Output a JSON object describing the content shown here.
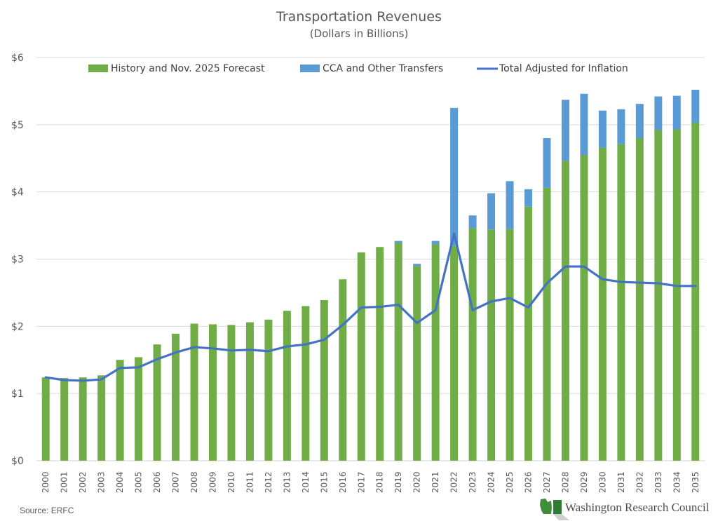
{
  "chart_data": {
    "type": "bar",
    "stacked": true,
    "title": "Transportation Revenues",
    "subtitle": "(Dollars in Billions)",
    "xlabel": "",
    "ylabel": "",
    "ylim": [
      0,
      6
    ],
    "yticks": [
      0,
      1,
      2,
      3,
      4,
      5,
      6
    ],
    "ytick_labels": [
      "$0",
      "$1",
      "$2",
      "$3",
      "$4",
      "$5",
      "$6"
    ],
    "grid": true,
    "legend_position": "top",
    "categories": [
      "2000",
      "2001",
      "2002",
      "2003",
      "2004",
      "2005",
      "2006",
      "2007",
      "2008",
      "2009",
      "2010",
      "2011",
      "2012",
      "2013",
      "2014",
      "2015",
      "2016",
      "2017",
      "2018",
      "2019",
      "2020",
      "2021",
      "2022",
      "2023",
      "2024",
      "2025",
      "2026",
      "2027",
      "2028",
      "2029",
      "2030",
      "2031",
      "2032",
      "2033",
      "2034",
      "2035"
    ],
    "series": [
      {
        "name": "History and Nov. 2025 Forecast",
        "kind": "bar",
        "color": "#70ad47",
        "values": [
          1.24,
          1.23,
          1.24,
          1.27,
          1.5,
          1.54,
          1.73,
          1.89,
          2.04,
          2.03,
          2.02,
          2.06,
          2.1,
          2.23,
          2.3,
          2.39,
          2.7,
          3.1,
          3.18,
          3.24,
          2.9,
          3.22,
          3.2,
          3.46,
          3.44,
          3.45,
          3.78,
          4.06,
          4.46,
          4.55,
          4.66,
          4.71,
          4.8,
          4.92,
          4.93,
          5.03
        ]
      },
      {
        "name": "CCA and Other Transfers",
        "kind": "bar",
        "color": "#5b9bd5",
        "values": [
          0,
          0,
          0,
          0,
          0,
          0,
          0,
          0,
          0,
          0,
          0,
          0,
          0,
          0,
          0,
          0,
          0,
          0,
          0,
          0.03,
          0.03,
          0.05,
          2.05,
          0.19,
          0.54,
          0.71,
          0.26,
          0.74,
          0.91,
          0.91,
          0.55,
          0.52,
          0.51,
          0.5,
          0.5,
          0.49
        ]
      },
      {
        "name": "Total Adjusted for Inflation",
        "kind": "line",
        "color": "#4472c4",
        "values": [
          1.24,
          1.2,
          1.19,
          1.21,
          1.38,
          1.39,
          1.51,
          1.61,
          1.69,
          1.67,
          1.64,
          1.65,
          1.63,
          1.7,
          1.73,
          1.8,
          2.02,
          2.28,
          2.29,
          2.32,
          2.05,
          2.24,
          3.38,
          2.24,
          2.37,
          2.42,
          2.28,
          2.64,
          2.89,
          2.89,
          2.7,
          2.66,
          2.65,
          2.64,
          2.6,
          2.6
        ]
      }
    ]
  },
  "footer": {
    "source": "Source: ERFC",
    "logo_text": "Washington Research Council"
  },
  "colors": {
    "grid": "#d9d9d9",
    "text": "#595959"
  }
}
